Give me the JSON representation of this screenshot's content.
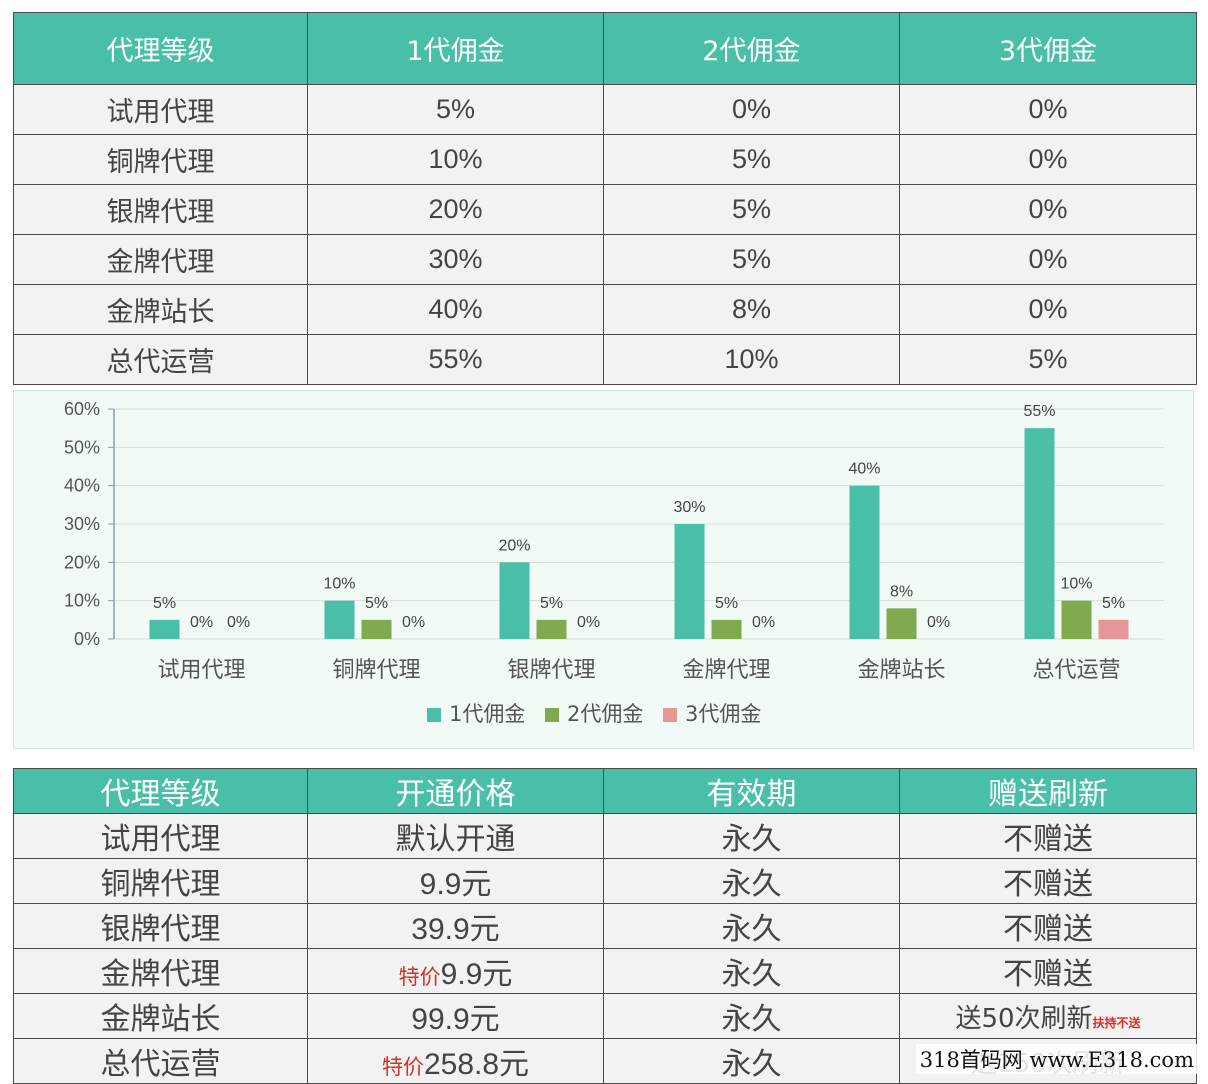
{
  "commission_table": {
    "headers": [
      "代理等级",
      "1代佣金",
      "2代佣金",
      "3代佣金"
    ],
    "rows": [
      [
        "试用代理",
        "5%",
        "0%",
        "0%"
      ],
      [
        "铜牌代理",
        "10%",
        "5%",
        "0%"
      ],
      [
        "银牌代理",
        "20%",
        "5%",
        "0%"
      ],
      [
        "金牌代理",
        "30%",
        "5%",
        "0%"
      ],
      [
        "金牌站长",
        "40%",
        "8%",
        "0%"
      ],
      [
        "总代运营",
        "55%",
        "10%",
        "5%"
      ]
    ]
  },
  "chart_data": {
    "type": "bar",
    "categories": [
      "试用代理",
      "铜牌代理",
      "银牌代理",
      "金牌代理",
      "金牌站长",
      "总代运营"
    ],
    "series": [
      {
        "name": "1代佣金",
        "values": [
          5,
          10,
          20,
          30,
          40,
          55
        ],
        "color": "#49bfa8"
      },
      {
        "name": "2代佣金",
        "values": [
          0,
          5,
          5,
          5,
          8,
          10
        ],
        "color": "#7faa4e"
      },
      {
        "name": "3代佣金",
        "values": [
          0,
          0,
          0,
          0,
          0,
          5
        ],
        "color": "#e69696"
      }
    ],
    "yticks": [
      "0%",
      "10%",
      "20%",
      "30%",
      "40%",
      "50%",
      "60%"
    ],
    "ylim": [
      0,
      60
    ],
    "grid": true,
    "data_labels": true,
    "legend": "bottom-center"
  },
  "price_table": {
    "headers": [
      "代理等级",
      "开通价格",
      "有效期",
      "赠送刷新"
    ],
    "rows": [
      {
        "level": "试用代理",
        "price_prefix": "",
        "price": "默认开通",
        "validity": "永久",
        "gift": "不赠送",
        "gift_note": ""
      },
      {
        "level": "铜牌代理",
        "price_prefix": "",
        "price": "9.9元",
        "validity": "永久",
        "gift": "不赠送",
        "gift_note": ""
      },
      {
        "level": "银牌代理",
        "price_prefix": "",
        "price": "39.9元",
        "validity": "永久",
        "gift": "不赠送",
        "gift_note": ""
      },
      {
        "level": "金牌代理",
        "price_prefix": "特价",
        "price": "9.9元",
        "validity": "永久",
        "gift": "不赠送",
        "gift_note": ""
      },
      {
        "level": "金牌站长",
        "price_prefix": "",
        "price": "99.9元",
        "validity": "永久",
        "gift": "送50次刷新",
        "gift_note": "扶持不送"
      },
      {
        "level": "总代运营",
        "price_prefix": "特价",
        "price": "258.8元",
        "validity": "永久",
        "gift": "送150次刷新",
        "gift_note": ""
      }
    ]
  },
  "watermark": "318首码网 www.E318.com"
}
